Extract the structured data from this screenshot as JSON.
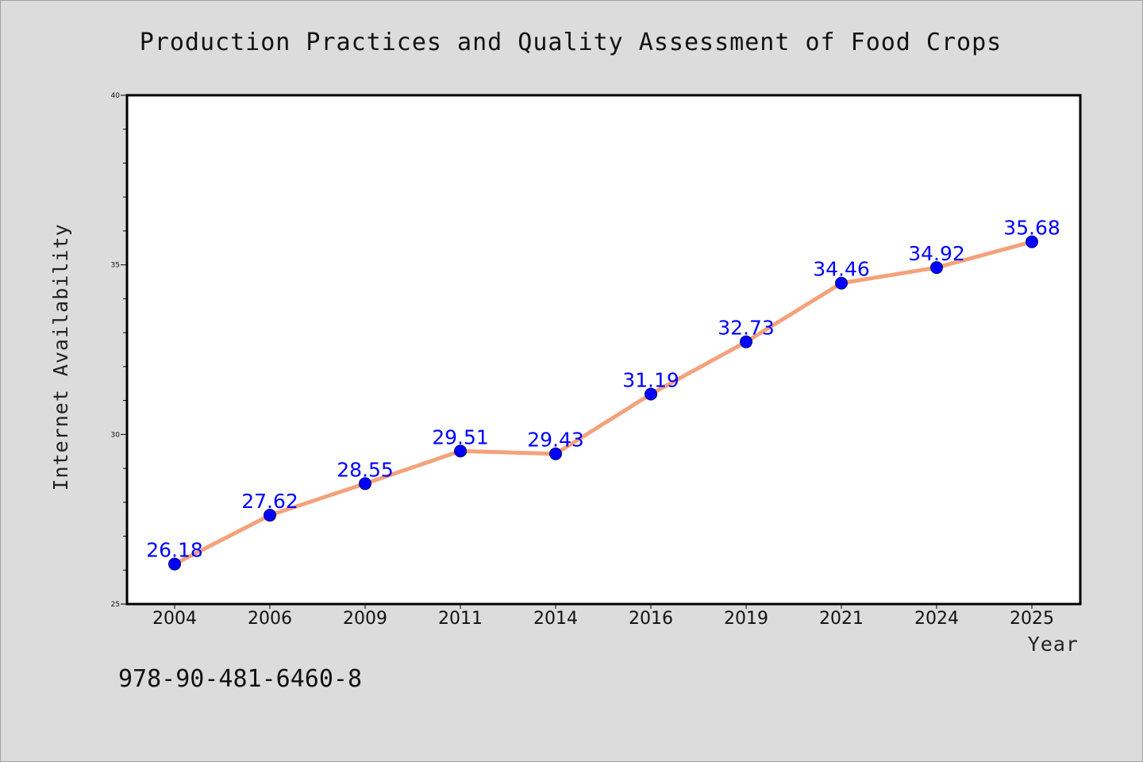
{
  "chart_data": {
    "type": "line",
    "title": "Production Practices and Quality Assessment of Food Crops",
    "xlabel": "Year",
    "ylabel": "Internet Availability",
    "categories": [
      "2004",
      "2006",
      "2009",
      "2011",
      "2014",
      "2016",
      "2019",
      "2021",
      "2024",
      "2025"
    ],
    "series": [
      {
        "values": [
          26.18,
          27.62,
          28.55,
          29.51,
          29.43,
          31.19,
          32.73,
          34.46,
          34.92,
          35.68
        ]
      }
    ],
    "data_labels": [
      "26.18",
      "27.62",
      "28.55",
      "29.51",
      "29.43",
      "31.19",
      "32.73",
      "34.46",
      "34.92",
      "35.68"
    ],
    "ylim": [
      25,
      40
    ],
    "yticks": [
      "25",
      "30",
      "35",
      "40"
    ],
    "grid": false,
    "legend": "none",
    "colors": {
      "line": "#f4a27c",
      "marker": "#0000ff",
      "label": "#0000ff",
      "background": "#dcdcdc",
      "plot_background": "#ffffff"
    }
  },
  "annotation": {
    "isbn": "978-90-481-6460-8"
  }
}
